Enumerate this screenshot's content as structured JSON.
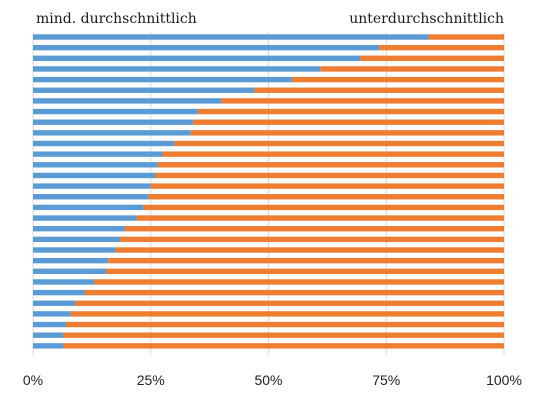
{
  "chart_data": {
    "type": "bar",
    "orientation": "horizontal",
    "stacked": "percent",
    "title": "",
    "xlabel": "",
    "ylabel": "",
    "xlim": [
      0,
      100
    ],
    "x_ticks": [
      "0%",
      "25%",
      "50%",
      "75%",
      "100%"
    ],
    "grid": true,
    "legend_placement": "top",
    "categories": [
      "",
      "",
      "",
      "",
      "",
      "",
      "",
      "",
      "",
      "",
      "",
      "",
      "",
      "",
      "",
      "",
      "",
      "",
      "",
      "",
      "",
      "",
      "",
      "",
      "",
      "",
      "",
      "",
      "",
      ""
    ],
    "series": [
      {
        "name": "mind. durchschnittlich",
        "color": "#5B9BD5",
        "values": [
          84,
          73.5,
          69.5,
          61,
          55,
          47,
          40,
          35,
          34,
          33.5,
          30,
          27.5,
          26.5,
          26,
          25,
          24.5,
          23.5,
          22,
          19.5,
          18.5,
          17.5,
          16,
          15.5,
          13,
          11,
          9,
          8,
          7,
          6.5,
          6.5
        ]
      },
      {
        "name": "unterdurchschnittlich",
        "color": "#ED7D31",
        "values": [
          16,
          26.5,
          30.5,
          39,
          45,
          53,
          60,
          65,
          66,
          66.5,
          70,
          72.5,
          73.5,
          74,
          75,
          75.5,
          76.5,
          78,
          80.5,
          81.5,
          82.5,
          84,
          84.5,
          87,
          89,
          91,
          92,
          93,
          93.5,
          93.5
        ]
      }
    ]
  }
}
